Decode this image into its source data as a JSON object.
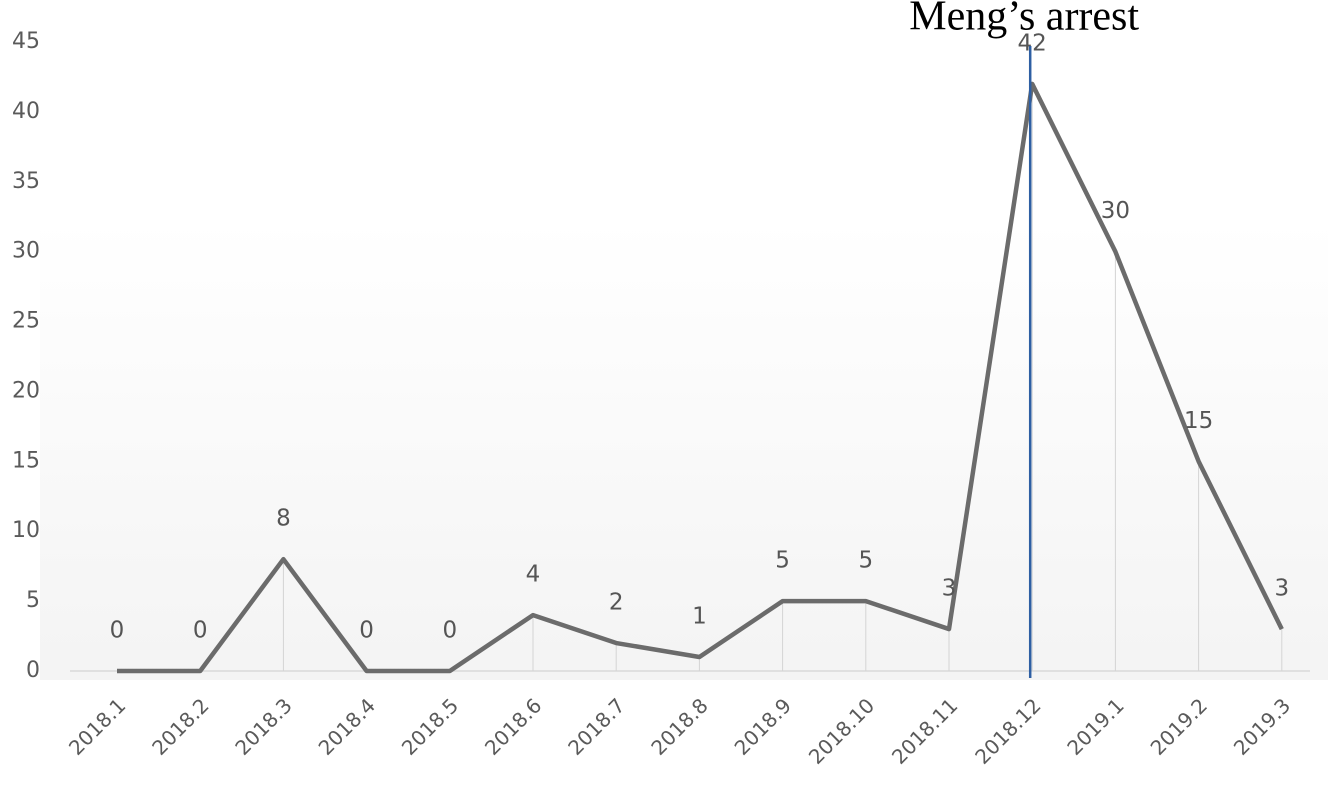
{
  "chart_data": {
    "type": "line",
    "categories": [
      "2018.1",
      "2018.2",
      "2018.3",
      "2018.4",
      "2018.5",
      "2018.6",
      "2018.7",
      "2018.8",
      "2018.9",
      "2018.10",
      "2018.11",
      "2018.12",
      "2019.1",
      "2019.2",
      "2019.3"
    ],
    "values": [
      0,
      0,
      8,
      0,
      0,
      4,
      2,
      1,
      5,
      5,
      3,
      42,
      30,
      15,
      3
    ],
    "color": "#6b6b6b",
    "ylim": [
      0,
      45
    ],
    "yticks": [
      0,
      5,
      10,
      15,
      20,
      25,
      30,
      35,
      40,
      45
    ],
    "drop_lines": true,
    "annotation": {
      "text": "Meng’s arrest",
      "category": "2018.12",
      "color": "#2e5fa3"
    }
  }
}
